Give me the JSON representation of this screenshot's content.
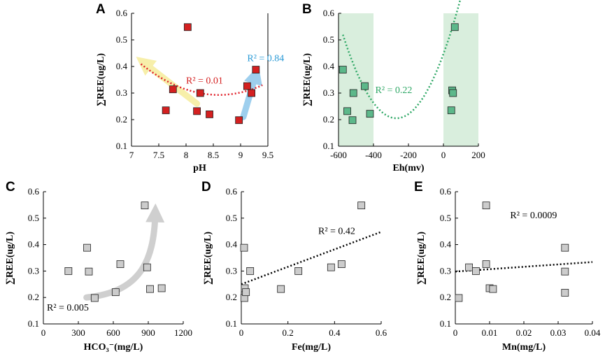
{
  "chart_data": [
    {
      "panel": "A",
      "type": "scatter",
      "xlabel": "pH",
      "ylabel": "∑REE(ug/L)",
      "xlim": [
        7,
        9.5
      ],
      "ylim": [
        0.1,
        0.6
      ],
      "xticks": [
        7,
        7.5,
        8,
        8.5,
        9,
        9.5
      ],
      "yticks": [
        0.1,
        0.2,
        0.3,
        0.4,
        0.5,
        0.6
      ],
      "xtick_labels": [
        "7",
        "7.5",
        "8",
        "8.5",
        "9",
        "9.5"
      ],
      "ytick_labels": [
        "0.1",
        "0.2",
        "0.3",
        "0.4",
        "0.5",
        "0.6"
      ],
      "marker_color": "#d42020",
      "points": [
        [
          8.03,
          0.548
        ],
        [
          7.63,
          0.235
        ],
        [
          7.76,
          0.314
        ],
        [
          8.2,
          0.232
        ],
        [
          8.26,
          0.3
        ],
        [
          8.43,
          0.22
        ],
        [
          8.97,
          0.198
        ],
        [
          9.12,
          0.326
        ],
        [
          9.2,
          0.3
        ],
        [
          9.28,
          0.388
        ]
      ],
      "trendline": {
        "color": "#e0202a",
        "coef": [
          0.8636,
          -1.2895,
          0.6014
        ]
      },
      "annotations": [
        {
          "text": "R² = 0.01",
          "color": "#d42020",
          "x": 8.0,
          "y": 0.335
        },
        {
          "text": "R² = 0.84",
          "color": "#2a9ad6",
          "x": 9.12,
          "y": 0.42
        }
      ],
      "arrows": [
        {
          "color": "#f7efaa",
          "from": [
            8.2,
            0.26
          ],
          "to": [
            7.22,
            0.415
          ]
        },
        {
          "color": "#9ecfee",
          "from": [
            9.05,
            0.21
          ],
          "to": [
            9.28,
            0.37
          ]
        }
      ]
    },
    {
      "panel": "B",
      "type": "scatter",
      "xlabel": "Eh(mv)",
      "ylabel": "∑REE(ug/L)",
      "xlim": [
        -600,
        200
      ],
      "ylim": [
        0.1,
        0.6
      ],
      "xticks": [
        -600,
        -400,
        -200,
        0,
        200
      ],
      "yticks": [
        0.1,
        0.2,
        0.3,
        0.4,
        0.5,
        0.6
      ],
      "xtick_labels": [
        "-600",
        "-400",
        "-200",
        "0",
        "200"
      ],
      "ytick_labels": [
        "0.1",
        "0.2",
        "0.3",
        "0.4",
        "0.5",
        "0.6"
      ],
      "marker_color": "#5cb88a",
      "shade_color": "#d9eedd",
      "shaded_ranges": [
        [
          -600,
          -400
        ],
        [
          0,
          200
        ]
      ],
      "points": [
        [
          -575,
          0.388
        ],
        [
          -550,
          0.232
        ],
        [
          -520,
          0.198
        ],
        [
          -515,
          0.3
        ],
        [
          -450,
          0.326
        ],
        [
          -420,
          0.222
        ],
        [
          45,
          0.235
        ],
        [
          50,
          0.31
        ],
        [
          55,
          0.3
        ],
        [
          65,
          0.548
        ]
      ],
      "trendline": {
        "color": "#2fa866",
        "coef": [
          3.35e-06,
          0.0018,
          0.447
        ],
        "x_range": [
          -575,
          175
        ]
      },
      "annotations": [
        {
          "text": "R² = 0.22",
          "color": "#2fa866",
          "x": -390,
          "y": 0.3
        }
      ]
    },
    {
      "panel": "C",
      "type": "scatter",
      "xlabel": "HCO₃⁻(mg/L)",
      "ylabel": "∑REE(ug/L)",
      "xlim": [
        0,
        1200
      ],
      "ylim": [
        0.1,
        0.6
      ],
      "xticks": [
        0,
        300,
        600,
        900,
        1200
      ],
      "yticks": [
        0.1,
        0.2,
        0.3,
        0.4,
        0.5,
        0.6
      ],
      "xtick_labels": [
        "0",
        "300",
        "600",
        "900",
        "1200"
      ],
      "ytick_labels": [
        "0.1",
        "0.2",
        "0.3",
        "0.4",
        "0.5",
        "0.6"
      ],
      "marker_color": "#cccccc",
      "points": [
        [
          215,
          0.3
        ],
        [
          375,
          0.388
        ],
        [
          390,
          0.298
        ],
        [
          440,
          0.198
        ],
        [
          620,
          0.22
        ],
        [
          660,
          0.326
        ],
        [
          870,
          0.548
        ],
        [
          890,
          0.314
        ],
        [
          915,
          0.232
        ],
        [
          1015,
          0.235
        ]
      ],
      "annotations": [
        {
          "text": "R² = 0.005",
          "color": "#000000",
          "x": 30,
          "y": 0.15
        }
      ],
      "arrows": [
        {
          "color": "#cfcfcf",
          "curve": [
            [
              370,
              0.2
            ],
            [
              820,
              0.22
            ],
            [
              950,
              0.33
            ],
            [
              960,
              0.52
            ]
          ]
        }
      ]
    },
    {
      "panel": "D",
      "type": "scatter",
      "xlabel": "Fe(mg/L)",
      "ylabel": "∑REE(ug/L)",
      "xlim": [
        0,
        0.6
      ],
      "ylim": [
        0.1,
        0.6
      ],
      "xticks": [
        0,
        0.2,
        0.4,
        0.6
      ],
      "yticks": [
        0.1,
        0.2,
        0.3,
        0.4,
        0.5,
        0.6
      ],
      "xtick_labels": [
        "0",
        "0.2",
        "0.4",
        "0.6"
      ],
      "ytick_labels": [
        "0.1",
        "0.2",
        "0.3",
        "0.4",
        "0.5",
        "0.6"
      ],
      "marker_color": "#cccccc",
      "points": [
        [
          0.012,
          0.388
        ],
        [
          0.013,
          0.198
        ],
        [
          0.015,
          0.235
        ],
        [
          0.02,
          0.22
        ],
        [
          0.038,
          0.3
        ],
        [
          0.17,
          0.232
        ],
        [
          0.245,
          0.3
        ],
        [
          0.385,
          0.314
        ],
        [
          0.43,
          0.326
        ],
        [
          0.515,
          0.548
        ]
      ],
      "trendline": {
        "color": "#000000",
        "coef": [
          0,
          0.33,
          0.25
        ],
        "x_range": [
          0,
          0.6
        ]
      },
      "annotations": [
        {
          "text": "R² = 0.42",
          "color": "#000000",
          "x": 0.33,
          "y": 0.44
        }
      ]
    },
    {
      "panel": "E",
      "type": "scatter",
      "xlabel": "Mn(mg/L)",
      "ylabel": "∑REE(ug/L)",
      "xlim": [
        0,
        0.04
      ],
      "ylim": [
        0.1,
        0.6
      ],
      "xticks": [
        0,
        0.01,
        0.02,
        0.03,
        0.04
      ],
      "yticks": [
        0.1,
        0.2,
        0.3,
        0.4,
        0.5,
        0.6
      ],
      "xtick_labels": [
        "0",
        "0.01",
        "0.02",
        "0.03",
        "0.04"
      ],
      "ytick_labels": [
        "0.1",
        "0.2",
        "0.3",
        "0.4",
        "0.5",
        "0.6"
      ],
      "marker_color": "#cccccc",
      "points": [
        [
          0.001,
          0.198
        ],
        [
          0.004,
          0.314
        ],
        [
          0.006,
          0.3
        ],
        [
          0.009,
          0.326
        ],
        [
          0.009,
          0.548
        ],
        [
          0.01,
          0.235
        ],
        [
          0.011,
          0.232
        ],
        [
          0.032,
          0.388
        ],
        [
          0.032,
          0.298
        ],
        [
          0.032,
          0.218
        ]
      ],
      "trendline": {
        "color": "#000000",
        "coef": [
          0,
          0.9,
          0.298
        ],
        "x_range": [
          0,
          0.04
        ]
      },
      "annotations": [
        {
          "text": "R² = 0.0009",
          "color": "#000000",
          "x": 0.016,
          "y": 0.5
        }
      ]
    }
  ]
}
